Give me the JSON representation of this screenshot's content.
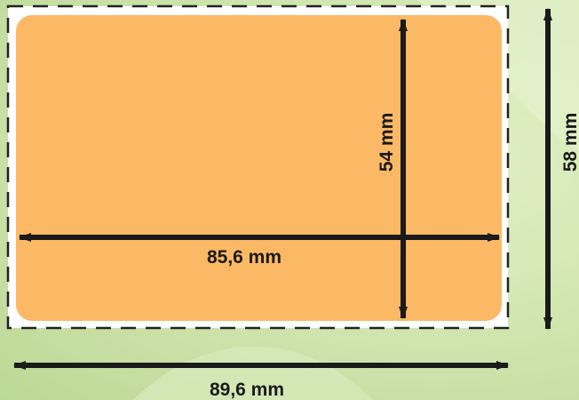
{
  "diagram": {
    "colors": {
      "card_fill": "#fbb965",
      "cut_area": "#ffffff",
      "border_dash": "#222222",
      "arrow": "#1a1a1a",
      "background": "#cfe4ad"
    },
    "labels": {
      "card_height": "54 mm",
      "card_width": "85,6 mm",
      "bleed_height": "58 mm",
      "bleed_width": "89,6 mm"
    }
  }
}
